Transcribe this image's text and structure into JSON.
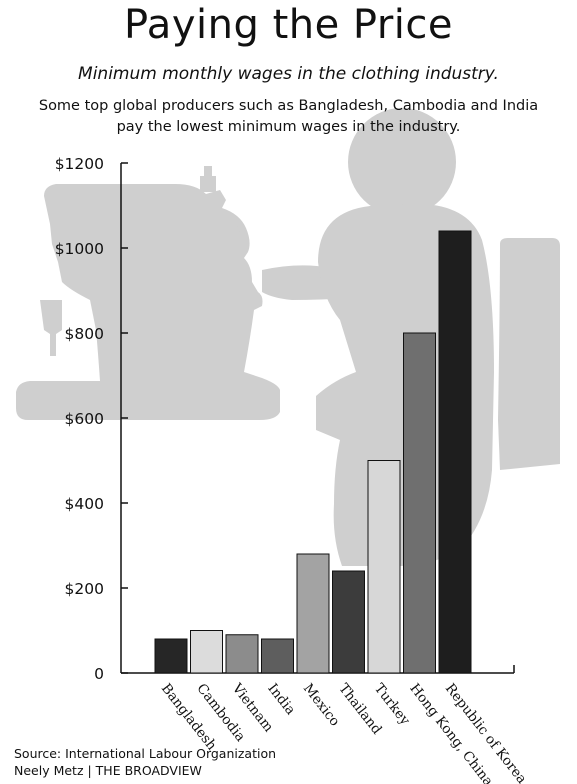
{
  "header": {
    "title": "Paying the Price",
    "subtitle": "Minimum monthly wages in the clothing industry.",
    "description": "Some top global producers such as Bangladesh, Cambodia and India pay the lowest minimum wages in the industry."
  },
  "footer": {
    "source": "Source: International Labour Organization",
    "credit": "Neely Metz | THE BROADVIEW"
  },
  "chart_data": {
    "type": "bar",
    "categories": [
      "Bangladesh",
      "Cambodia",
      "Vietnam",
      "India",
      "Mexico",
      "Thailand",
      "Turkey",
      "Hong Kong, China",
      "Republic of Korea"
    ],
    "values": [
      80,
      100,
      90,
      80,
      280,
      240,
      500,
      800,
      1040
    ],
    "colors": [
      "#262626",
      "#dcdcdc",
      "#8c8c8c",
      "#5e5e5e",
      "#a3a3a3",
      "#3c3c3c",
      "#d7d7d7",
      "#6f6f6f",
      "#1e1e1e"
    ],
    "y_tick_labels": [
      "0",
      "$200",
      "$400",
      "$600",
      "$800",
      "$1000",
      "$1200"
    ],
    "ylim": [
      0,
      1200
    ],
    "background_illustration": "sewing-machine-worker-silhouette"
  }
}
